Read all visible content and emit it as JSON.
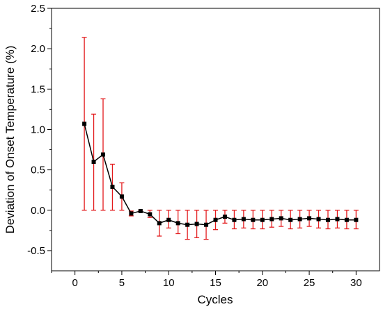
{
  "chart_data": {
    "type": "line",
    "title": "",
    "xlabel": "Cycles",
    "ylabel": "Deviation of Onset Temperature (%)",
    "xlim": [
      -2.5,
      32.5
    ],
    "ylim": [
      -0.75,
      2.5
    ],
    "xticks": [
      0,
      5,
      10,
      15,
      20,
      25,
      30
    ],
    "xtick_labels": [
      "0",
      "5",
      "10",
      "15",
      "20",
      "25",
      "30"
    ],
    "yticks": [
      -0.5,
      0.0,
      0.5,
      1.0,
      1.5,
      2.0,
      2.5
    ],
    "ytick_labels": [
      "-0.5",
      "0.0",
      "0.5",
      "1.0",
      "1.5",
      "2.0",
      "2.5"
    ],
    "grid": false,
    "legend": "none",
    "colors": {
      "line": "#000000",
      "marker": "#000000",
      "error_bar": "#e31a1c"
    },
    "series": [
      {
        "marker": "square",
        "x": [
          1,
          2,
          3,
          4,
          5,
          6,
          7,
          8,
          9,
          10,
          11,
          12,
          13,
          14,
          15,
          16,
          17,
          18,
          19,
          20,
          21,
          22,
          23,
          24,
          25,
          26,
          27,
          28,
          29,
          30
        ],
        "y": [
          1.07,
          0.6,
          0.69,
          0.29,
          0.17,
          -0.04,
          -0.01,
          -0.05,
          -0.16,
          -0.12,
          -0.16,
          -0.18,
          -0.17,
          -0.18,
          -0.12,
          -0.08,
          -0.12,
          -0.11,
          -0.12,
          -0.12,
          -0.11,
          -0.1,
          -0.12,
          -0.11,
          -0.1,
          -0.11,
          -0.12,
          -0.11,
          -0.12,
          -0.12
        ],
        "error_low": [
          0.0,
          0.0,
          0.0,
          0.0,
          0.0,
          -0.07,
          -0.02,
          -0.09,
          -0.32,
          -0.22,
          -0.29,
          -0.36,
          -0.34,
          -0.36,
          -0.24,
          -0.16,
          -0.23,
          -0.22,
          -0.23,
          -0.23,
          -0.21,
          -0.2,
          -0.23,
          -0.22,
          -0.2,
          -0.22,
          -0.23,
          -0.22,
          -0.23,
          -0.23
        ],
        "error_high": [
          2.14,
          1.19,
          1.38,
          0.57,
          0.34,
          -0.01,
          0.0,
          0.0,
          0.0,
          0.0,
          0.0,
          0.0,
          0.0,
          0.0,
          0.0,
          0.0,
          0.0,
          0.0,
          0.0,
          0.0,
          0.0,
          0.0,
          0.0,
          0.0,
          0.0,
          0.0,
          0.0,
          0.0,
          0.0,
          0.0
        ]
      }
    ]
  }
}
